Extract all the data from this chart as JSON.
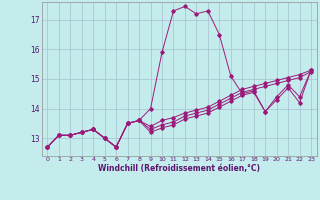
{
  "xlabel": "Windchill (Refroidissement éolien,°C)",
  "background_color": "#c5eced",
  "grid_color": "#aac8d4",
  "line_color": "#9b1b7a",
  "xlim": [
    -0.5,
    23.5
  ],
  "ylim": [
    12.4,
    17.6
  ],
  "xticks": [
    0,
    1,
    2,
    3,
    4,
    5,
    6,
    7,
    8,
    9,
    10,
    11,
    12,
    13,
    14,
    15,
    16,
    17,
    18,
    19,
    20,
    21,
    22,
    23
  ],
  "yticks": [
    13,
    14,
    15,
    16,
    17
  ],
  "lines": [
    [
      12.7,
      13.1,
      13.1,
      13.2,
      13.3,
      13.0,
      12.7,
      13.5,
      13.6,
      14.0,
      15.9,
      17.3,
      17.45,
      17.2,
      17.3,
      16.5,
      15.1,
      14.5,
      14.6,
      13.9,
      14.4,
      14.8,
      14.4,
      15.3
    ],
    [
      12.7,
      13.1,
      13.1,
      13.2,
      13.3,
      13.0,
      12.7,
      13.5,
      13.6,
      13.4,
      13.6,
      13.7,
      13.85,
      13.95,
      14.05,
      14.25,
      14.45,
      14.65,
      14.75,
      14.85,
      14.95,
      15.05,
      15.15,
      15.3
    ],
    [
      12.7,
      13.1,
      13.1,
      13.2,
      13.3,
      13.0,
      12.7,
      13.5,
      13.6,
      13.3,
      13.45,
      13.55,
      13.75,
      13.85,
      13.95,
      14.15,
      14.35,
      14.55,
      14.65,
      14.75,
      14.85,
      14.95,
      15.05,
      15.25
    ],
    [
      12.7,
      13.1,
      13.1,
      13.2,
      13.3,
      13.0,
      12.7,
      13.5,
      13.6,
      13.2,
      13.35,
      13.45,
      13.65,
      13.75,
      13.85,
      14.05,
      14.25,
      14.45,
      14.55,
      13.9,
      14.3,
      14.7,
      14.2,
      15.3
    ]
  ]
}
